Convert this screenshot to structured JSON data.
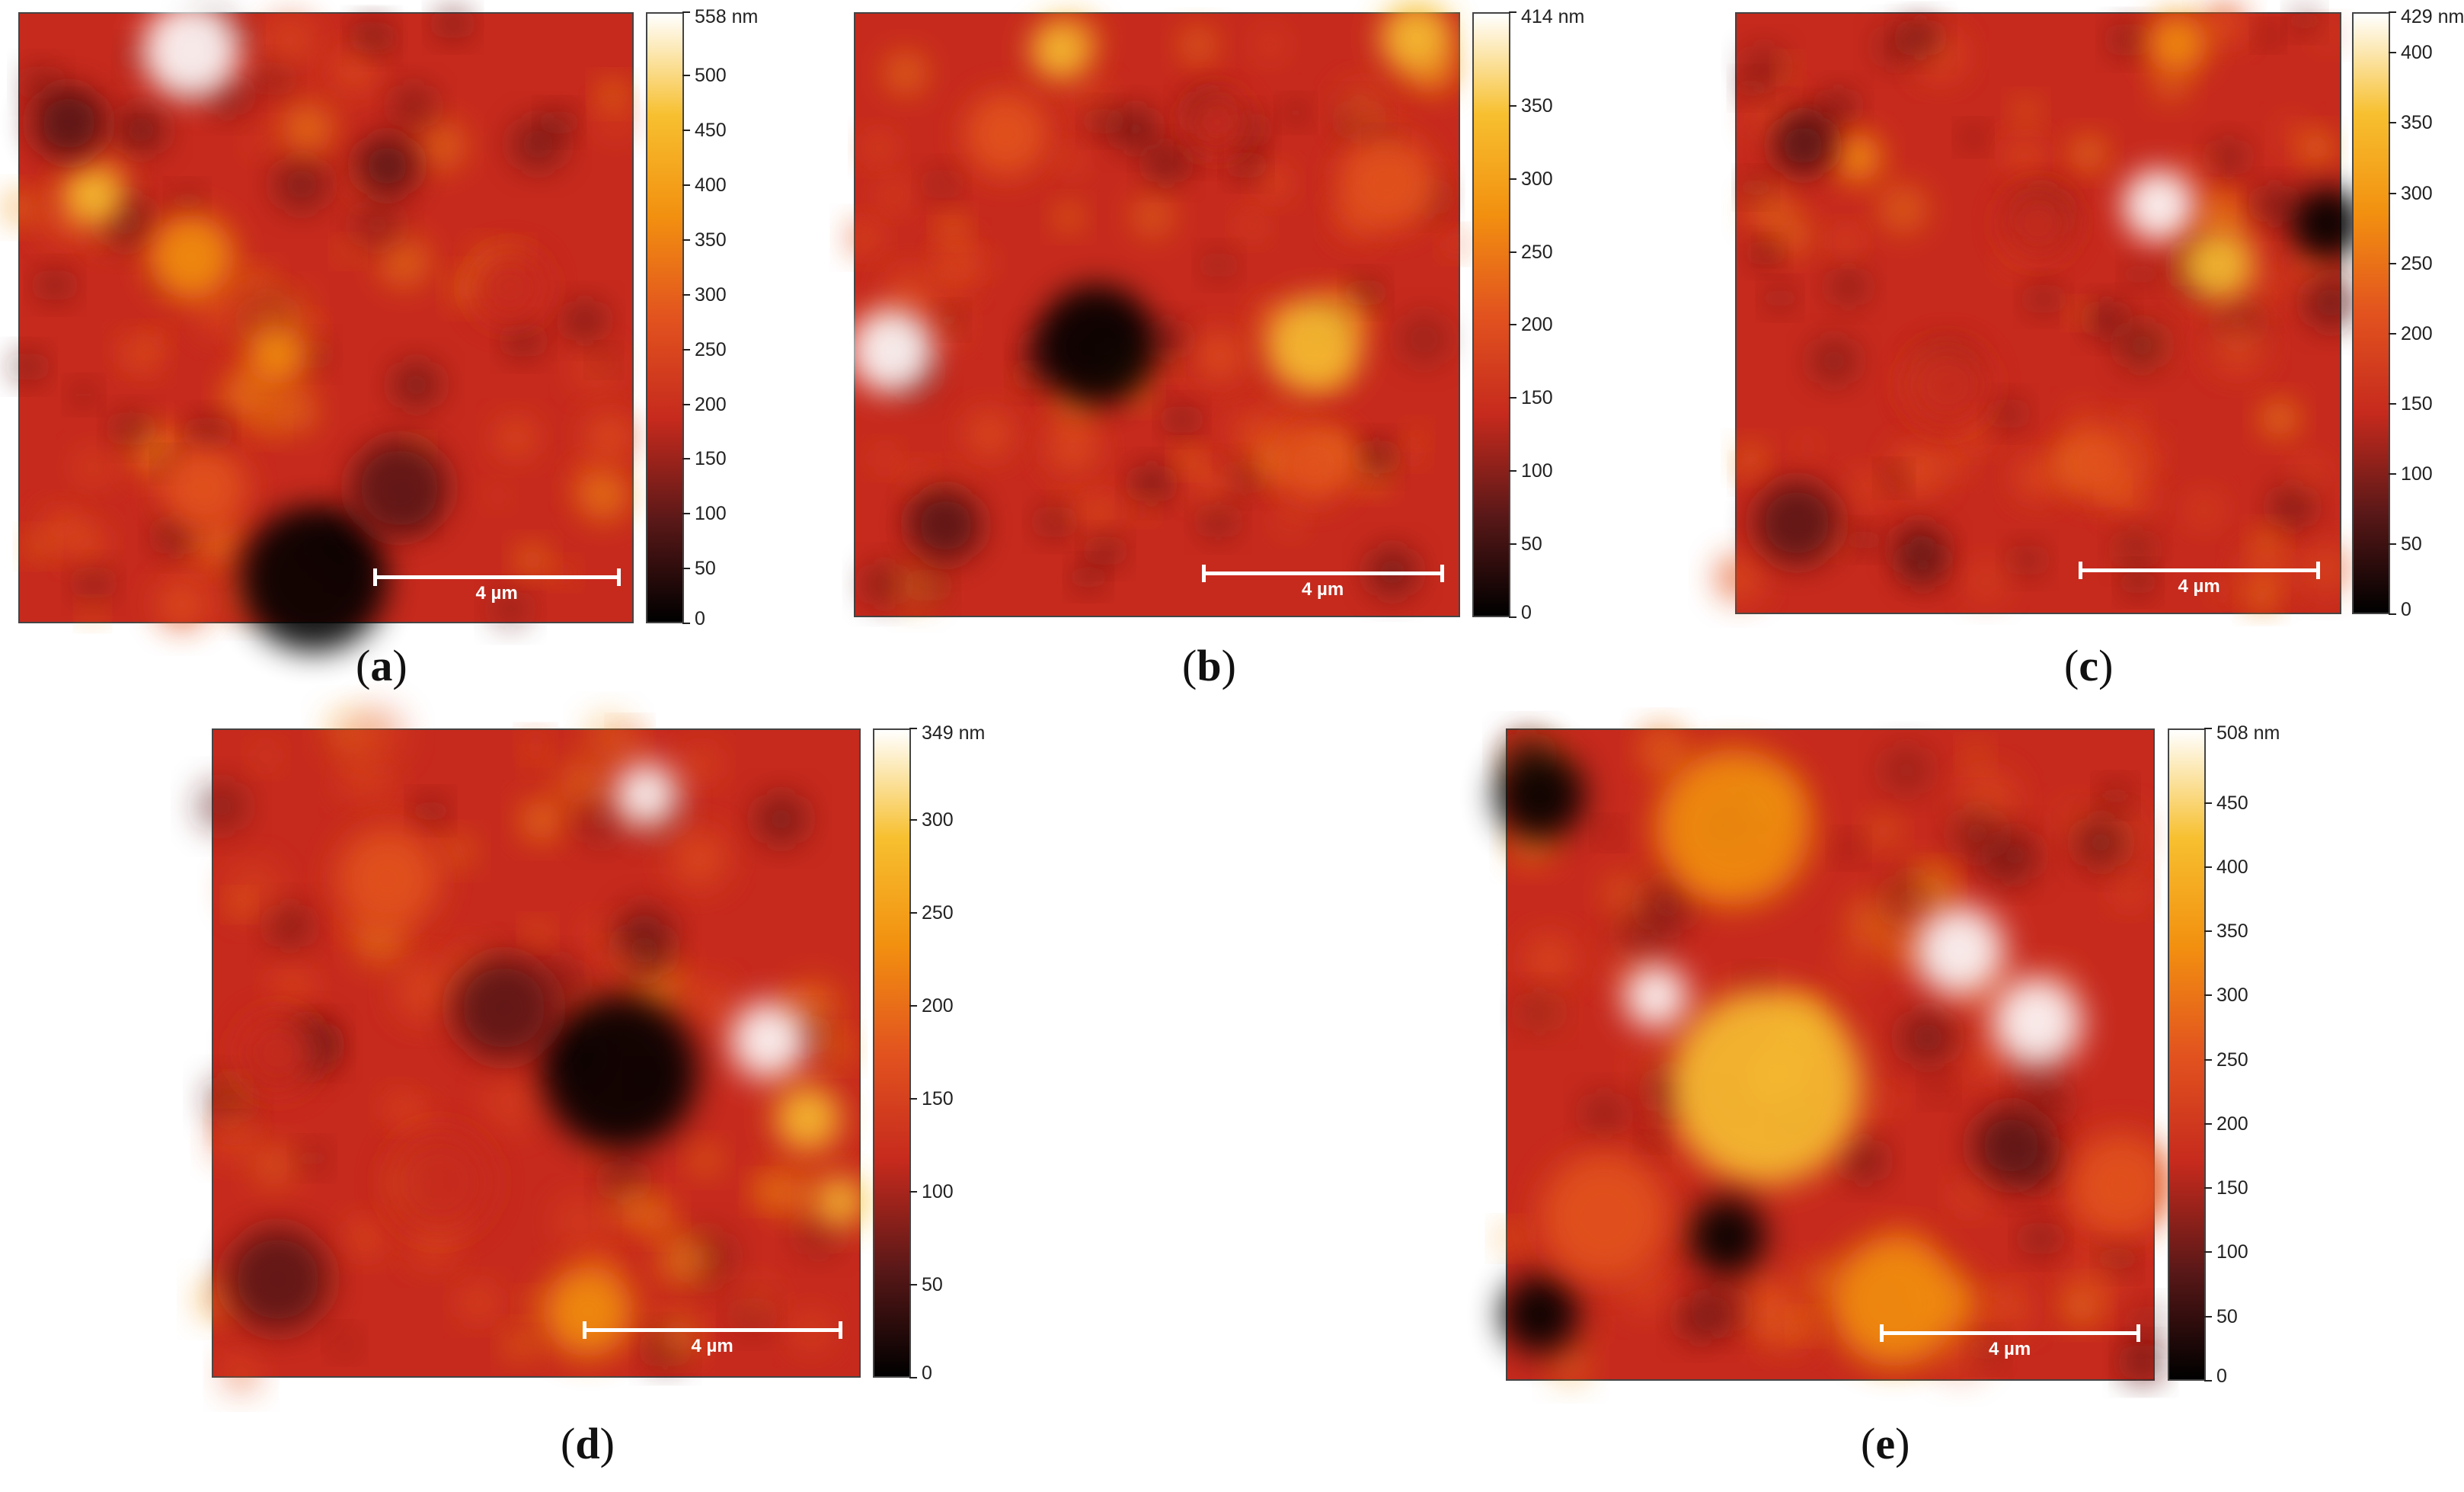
{
  "colormap": {
    "stops": [
      "#000000",
      "#5a1818",
      "#c62a1d",
      "#e2531f",
      "#f29010",
      "#f7c030",
      "#ffffff"
    ]
  },
  "panels": [
    {
      "letter": "a",
      "colorbar_ticks": [
        "558 nm",
        "500",
        "450",
        "400",
        "350",
        "300",
        "250",
        "200",
        "150",
        "100",
        "50",
        "0"
      ],
      "tick_values": [
        558,
        500,
        450,
        400,
        350,
        300,
        250,
        200,
        150,
        100,
        50,
        0
      ],
      "max_nm": 558,
      "scale_label": "4 µm"
    },
    {
      "letter": "b",
      "colorbar_ticks": [
        "414 nm",
        "350",
        "300",
        "250",
        "200",
        "150",
        "100",
        "50",
        "0"
      ],
      "tick_values": [
        414,
        350,
        300,
        250,
        200,
        150,
        100,
        50,
        0
      ],
      "max_nm": 414,
      "scale_label": "4 µm"
    },
    {
      "letter": "c",
      "colorbar_ticks": [
        "429 nm",
        "400",
        "350",
        "300",
        "250",
        "200",
        "150",
        "100",
        "50",
        "0"
      ],
      "tick_values": [
        429,
        400,
        350,
        300,
        250,
        200,
        150,
        100,
        50,
        0
      ],
      "max_nm": 429,
      "scale_label": "4 µm"
    },
    {
      "letter": "d",
      "colorbar_ticks": [
        "349 nm",
        "300",
        "250",
        "200",
        "150",
        "100",
        "50",
        "0"
      ],
      "tick_values": [
        349,
        300,
        250,
        200,
        150,
        100,
        50,
        0
      ],
      "max_nm": 349,
      "scale_label": "4 µm"
    },
    {
      "letter": "e",
      "colorbar_ticks": [
        "508 nm",
        "450",
        "400",
        "350",
        "300",
        "250",
        "200",
        "150",
        "100",
        "50",
        "0"
      ],
      "tick_values": [
        508,
        450,
        400,
        350,
        300,
        250,
        200,
        150,
        100,
        50,
        0
      ],
      "max_nm": 508,
      "scale_label": "4 µm"
    }
  ]
}
